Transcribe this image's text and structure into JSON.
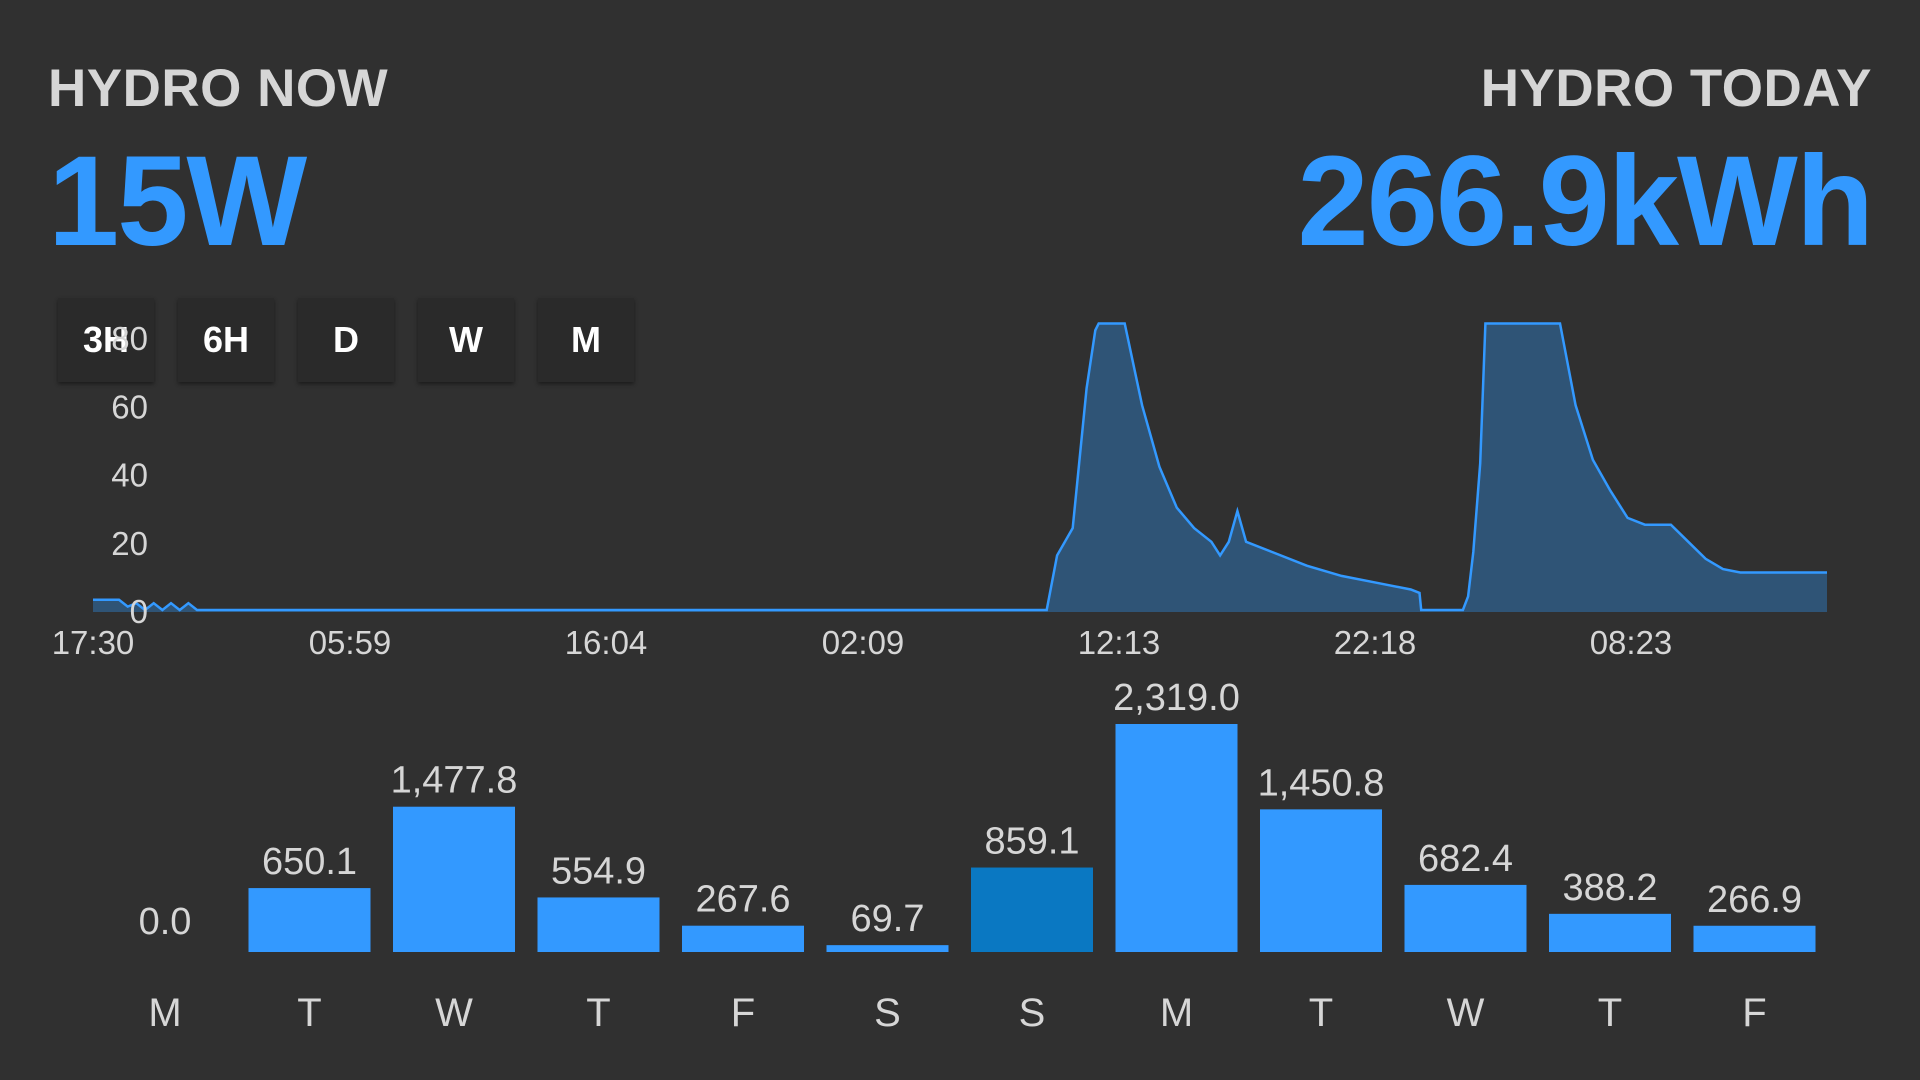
{
  "header": {
    "now_label": "HYDRO NOW",
    "now_value": "15W",
    "today_label": "HYDRO TODAY",
    "today_value": "266.9kWh"
  },
  "range_buttons": [
    "3H",
    "6H",
    "D",
    "W",
    "M"
  ],
  "colors": {
    "accent": "#3399ff",
    "area_fill": "#2f5476",
    "bar": "#3399ff",
    "bar_highlight": "#0a78c2",
    "background": "#303030"
  },
  "chart_data": [
    {
      "type": "area",
      "y_ticks": [
        "0",
        "20",
        "40",
        "60",
        "80"
      ],
      "x_ticks": [
        "17:30",
        "05:59",
        "16:04",
        "02:09",
        "12:13",
        "22:18",
        "08:23"
      ],
      "ylim": [
        0,
        90
      ],
      "points": [
        [
          0,
          3
        ],
        [
          1.5,
          3
        ],
        [
          2,
          1
        ],
        [
          2.5,
          2
        ],
        [
          3,
          0
        ],
        [
          3.5,
          2
        ],
        [
          4,
          0
        ],
        [
          4.5,
          2
        ],
        [
          5,
          0
        ],
        [
          5.5,
          2
        ],
        [
          6,
          0
        ],
        [
          55,
          0
        ],
        [
          55.6,
          16
        ],
        [
          56.5,
          24
        ],
        [
          57.3,
          65
        ],
        [
          57.8,
          82
        ],
        [
          58,
          84
        ],
        [
          59.5,
          84
        ],
        [
          60.5,
          60
        ],
        [
          61.5,
          42
        ],
        [
          62.5,
          30
        ],
        [
          63.5,
          24
        ],
        [
          64.5,
          20
        ],
        [
          65,
          16
        ],
        [
          65.5,
          20
        ],
        [
          66,
          29
        ],
        [
          66.5,
          20
        ],
        [
          68,
          17
        ],
        [
          70,
          13
        ],
        [
          72,
          10
        ],
        [
          74,
          8
        ],
        [
          76,
          6
        ],
        [
          76.5,
          5
        ],
        [
          76.6,
          0
        ],
        [
          79,
          0
        ],
        [
          79.3,
          4
        ],
        [
          79.6,
          17
        ],
        [
          80,
          43
        ],
        [
          80.3,
          84
        ],
        [
          83,
          84
        ],
        [
          84.6,
          84
        ],
        [
          85.5,
          60
        ],
        [
          86.5,
          44
        ],
        [
          87.5,
          35
        ],
        [
          88.5,
          27
        ],
        [
          89.5,
          25
        ],
        [
          91,
          25
        ],
        [
          92,
          20
        ],
        [
          93,
          15
        ],
        [
          94,
          12
        ],
        [
          95,
          11
        ],
        [
          100,
          11
        ]
      ]
    },
    {
      "type": "bar",
      "categories": [
        "M",
        "T",
        "W",
        "T",
        "F",
        "S",
        "S",
        "M",
        "T",
        "W",
        "T",
        "F"
      ],
      "values": [
        0.0,
        650.1,
        1477.8,
        554.9,
        267.6,
        69.7,
        859.1,
        2319.0,
        1450.8,
        682.4,
        388.2,
        266.9
      ],
      "labels": [
        "0.0",
        "650.1",
        "1,477.8",
        "554.9",
        "267.6",
        "69.7",
        "859.1",
        "2,319.0",
        "1,450.8",
        "682.4",
        "388.2",
        "266.9"
      ],
      "highlight_index": 6,
      "ylim": [
        0,
        2319.0
      ]
    }
  ]
}
